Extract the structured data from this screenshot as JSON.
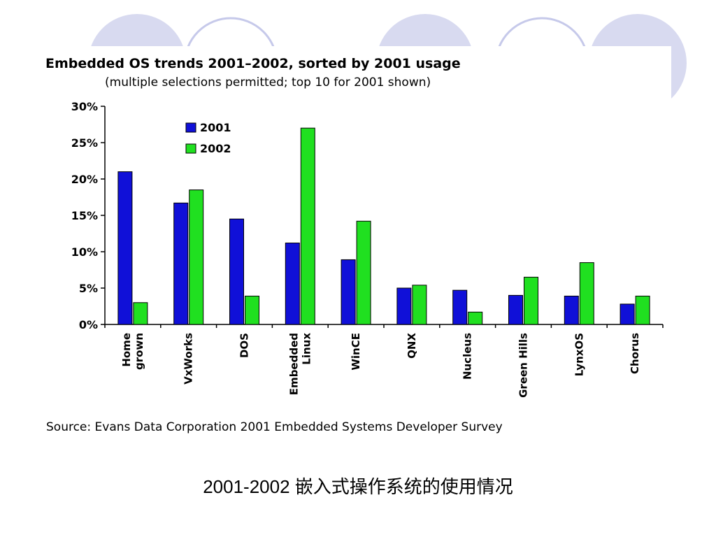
{
  "slide": {
    "caption": "2001-2002 嵌入式操作系统的使用情况",
    "decor_colors": {
      "fill": "#d8daf0",
      "outline": "#c6c9ea"
    }
  },
  "chart_data": {
    "type": "bar",
    "title": "Embedded OS trends 2001–2002, sorted by 2001 usage",
    "subtitle": "(multiple selections permitted; top 10 for 2001 shown)",
    "source": "Source:  Evans Data Corporation 2001 Embedded Systems Developer Survey",
    "categories": [
      [
        "Home",
        "grown"
      ],
      [
        "VxWorks"
      ],
      [
        "DOS"
      ],
      [
        "Embedded",
        "Linux"
      ],
      [
        "WinCE"
      ],
      [
        "QNX"
      ],
      [
        "Nucleus"
      ],
      [
        "Green Hills"
      ],
      [
        "LynxOS"
      ],
      [
        "Chorus"
      ]
    ],
    "series": [
      {
        "name": "2001",
        "color": "#1010d8",
        "values": [
          21,
          16.7,
          14.5,
          11.2,
          8.9,
          5,
          4.7,
          4,
          3.9,
          2.8
        ]
      },
      {
        "name": "2002",
        "color": "#20e020",
        "values": [
          3,
          18.5,
          3.9,
          27,
          14.2,
          5.4,
          1.7,
          6.5,
          8.5,
          3.9
        ]
      }
    ],
    "yticks": [
      "0%",
      "5%",
      "10%",
      "15%",
      "20%",
      "25%",
      "30%"
    ],
    "ylim": [
      0,
      30
    ],
    "legend_position": "top-left inside plot",
    "grid": false
  }
}
